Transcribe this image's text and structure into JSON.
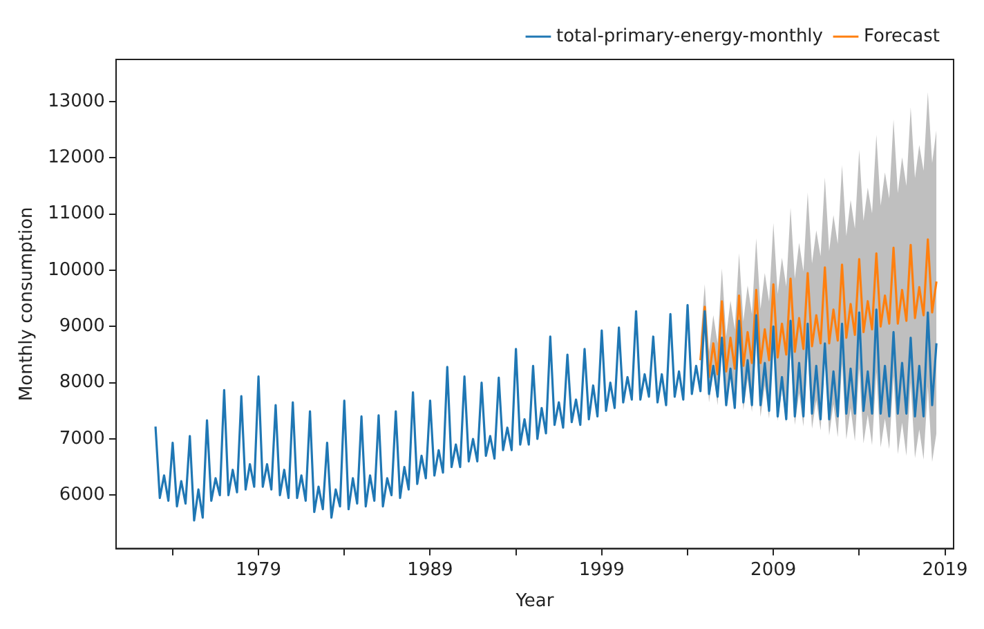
{
  "chart_data": {
    "type": "line",
    "xlabel": "Year",
    "ylabel": "Monthly consumption",
    "legend": "top right",
    "grid": false,
    "xlim": [
      1970.7,
      2019.5
    ],
    "xticks": [
      {
        "value": 1974,
        "label": null
      },
      1979,
      {
        "value": 1984,
        "label": null
      },
      1989,
      {
        "value": 1994,
        "label": null
      },
      1999,
      {
        "value": 2004,
        "label": null
      },
      2009,
      {
        "value": 2014,
        "label": null
      },
      2019
    ],
    "ylim": [
      5050,
      13750
    ],
    "yticks": [
      6000,
      7000,
      8000,
      9000,
      10000,
      11000,
      12000,
      13000
    ],
    "series": [
      {
        "name": "total-primary-energy-monthly",
        "color": "#1f77b4",
        "x": [
          1973,
          1973.25,
          1973.5,
          1973.75,
          1974,
          1974.25,
          1974.5,
          1974.75,
          1975,
          1975.25,
          1975.5,
          1975.75,
          1976,
          1976.25,
          1976.5,
          1976.75,
          1977,
          1977.25,
          1977.5,
          1977.75,
          1978,
          1978.25,
          1978.5,
          1978.75,
          1979,
          1979.25,
          1979.5,
          1979.75,
          1980,
          1980.25,
          1980.5,
          1980.75,
          1981,
          1981.25,
          1981.5,
          1981.75,
          1982,
          1982.25,
          1982.5,
          1982.75,
          1983,
          1983.25,
          1983.5,
          1983.75,
          1984,
          1984.25,
          1984.5,
          1984.75,
          1985,
          1985.25,
          1985.5,
          1985.75,
          1986,
          1986.25,
          1986.5,
          1986.75,
          1987,
          1987.25,
          1987.5,
          1987.75,
          1988,
          1988.25,
          1988.5,
          1988.75,
          1989,
          1989.25,
          1989.5,
          1989.75,
          1990,
          1990.25,
          1990.5,
          1990.75,
          1991,
          1991.25,
          1991.5,
          1991.75,
          1992,
          1992.25,
          1992.5,
          1992.75,
          1993,
          1993.25,
          1993.5,
          1993.75,
          1994,
          1994.25,
          1994.5,
          1994.75,
          1995,
          1995.25,
          1995.5,
          1995.75,
          1996,
          1996.25,
          1996.5,
          1996.75,
          1997,
          1997.25,
          1997.5,
          1997.75,
          1998,
          1998.25,
          1998.5,
          1998.75,
          1999,
          1999.25,
          1999.5,
          1999.75,
          2000,
          2000.25,
          2000.5,
          2000.75,
          2001,
          2001.25,
          2001.5,
          2001.75,
          2002,
          2002.25,
          2002.5,
          2002.75,
          2003,
          2003.25,
          2003.5,
          2003.75,
          2004,
          2004.25,
          2004.5,
          2004.75,
          2005,
          2005.25,
          2005.5,
          2005.75,
          2006,
          2006.25,
          2006.5,
          2006.75,
          2007,
          2007.25,
          2007.5,
          2007.75,
          2008,
          2008.25,
          2008.5,
          2008.75,
          2009,
          2009.25,
          2009.5,
          2009.75,
          2010,
          2010.25,
          2010.5,
          2010.75,
          2011,
          2011.25,
          2011.5,
          2011.75,
          2012,
          2012.25,
          2012.5,
          2012.75,
          2013,
          2013.25,
          2013.5,
          2013.75,
          2014,
          2014.25,
          2014.5,
          2014.75,
          2015,
          2015.25,
          2015.5,
          2015.75,
          2016,
          2016.25,
          2016.5,
          2016.75,
          2017,
          2017.25,
          2017.5,
          2017.75,
          2018,
          2018.25,
          2018.5
        ],
        "values": [
          7220,
          5950,
          6350,
          5900,
          6930,
          5800,
          6250,
          5850,
          7050,
          5550,
          6100,
          5600,
          7330,
          5900,
          6300,
          6000,
          7870,
          6000,
          6450,
          6050,
          7760,
          6100,
          6550,
          6150,
          8110,
          6150,
          6550,
          6100,
          7600,
          6000,
          6450,
          5950,
          7650,
          5950,
          6350,
          5900,
          7490,
          5700,
          6150,
          5750,
          6930,
          5600,
          6100,
          5800,
          7680,
          5750,
          6300,
          5850,
          7400,
          5800,
          6350,
          5900,
          7420,
          5800,
          6300,
          6000,
          7490,
          5950,
          6500,
          6100,
          7830,
          6200,
          6700,
          6300,
          7680,
          6350,
          6800,
          6400,
          8280,
          6500,
          6900,
          6500,
          8110,
          6600,
          7000,
          6600,
          8000,
          6700,
          7050,
          6650,
          8090,
          6800,
          7200,
          6800,
          8600,
          6900,
          7350,
          6900,
          8300,
          7000,
          7550,
          7100,
          8820,
          7250,
          7650,
          7200,
          8500,
          7300,
          7700,
          7250,
          8600,
          7350,
          7950,
          7400,
          8930,
          7500,
          8000,
          7550,
          8980,
          7650,
          8100,
          7700,
          9270,
          7700,
          8150,
          7750,
          8820,
          7650,
          8150,
          7600,
          9220,
          7750,
          8200,
          7700,
          9380,
          7800,
          8300,
          7850,
          9270,
          7800,
          8300,
          7750,
          8800,
          7600,
          8250,
          7550,
          9100,
          7650,
          8400,
          7600,
          9200,
          7600,
          8350,
          7500,
          9000,
          7400,
          8100,
          7350,
          9100,
          7400,
          8350,
          7400,
          9050,
          7450,
          8300,
          7350,
          8700,
          7350,
          8200,
          7400,
          9050,
          7450,
          8250,
          7450,
          9250,
          7500,
          8200,
          7450,
          9300,
          7450,
          8300,
          7400,
          8900,
          7450,
          8350,
          7450,
          8800,
          7400,
          8300,
          7400,
          9250,
          7600,
          8700
        ]
      },
      {
        "name": "Forecast",
        "color": "#ff7f0e",
        "x": [
          2004.75,
          2005,
          2005.25,
          2005.5,
          2005.75,
          2006,
          2006.25,
          2006.5,
          2006.75,
          2007,
          2007.25,
          2007.5,
          2007.75,
          2008,
          2008.25,
          2008.5,
          2008.75,
          2009,
          2009.25,
          2009.5,
          2009.75,
          2010,
          2010.25,
          2010.5,
          2010.75,
          2011,
          2011.25,
          2011.5,
          2011.75,
          2012,
          2012.25,
          2012.5,
          2012.75,
          2013,
          2013.25,
          2013.5,
          2013.75,
          2014,
          2014.25,
          2014.5,
          2014.75,
          2015,
          2015.25,
          2015.5,
          2015.75,
          2016,
          2016.25,
          2016.5,
          2016.75,
          2017,
          2017.25,
          2017.5,
          2017.75,
          2018,
          2018.25,
          2018.5
        ],
        "values": [
          8400,
          9350,
          8100,
          8700,
          8150,
          9450,
          8200,
          8800,
          8250,
          9550,
          8300,
          8900,
          8350,
          9650,
          8350,
          8950,
          8400,
          9750,
          8450,
          9050,
          8500,
          9850,
          8550,
          9150,
          8600,
          9950,
          8650,
          9200,
          8700,
          10050,
          8700,
          9300,
          8750,
          10100,
          8800,
          9400,
          8850,
          10200,
          8900,
          9450,
          8950,
          10300,
          9000,
          9550,
          9050,
          10400,
          9050,
          9650,
          9100,
          10450,
          9150,
          9700,
          9200,
          10550,
          9250,
          9800
        ],
        "upper": [
          8750,
          9750,
          8550,
          9200,
          8700,
          10030,
          8820,
          9460,
          8950,
          10300,
          9090,
          9730,
          9220,
          10570,
          9310,
          9950,
          9440,
          10840,
          9580,
          10220,
          9710,
          11110,
          9850,
          10490,
          9980,
          11380,
          10120,
          10710,
          10250,
          11650,
          10340,
          10980,
          10470,
          11870,
          10610,
          11250,
          10740,
          12140,
          10880,
          11470,
          11010,
          12410,
          11150,
          11740,
          11280,
          12680,
          11370,
          12010,
          11500,
          12900,
          11640,
          12230,
          11770,
          13170,
          11910,
          12500
        ],
        "lower": [
          8050,
          8950,
          7650,
          8200,
          7600,
          8870,
          7580,
          8140,
          7550,
          8800,
          7510,
          8070,
          7480,
          8730,
          7390,
          7950,
          7360,
          8660,
          7320,
          7880,
          7290,
          8590,
          7250,
          7810,
          7220,
          8520,
          7180,
          7690,
          7150,
          8450,
          7060,
          7620,
          7030,
          8330,
          6990,
          7550,
          6960,
          8260,
          6920,
          7430,
          6890,
          8190,
          6850,
          7360,
          6820,
          8120,
          6730,
          7290,
          6700,
          8000,
          6660,
          7170,
          6630,
          7930,
          6590,
          7100
        ]
      }
    ]
  }
}
